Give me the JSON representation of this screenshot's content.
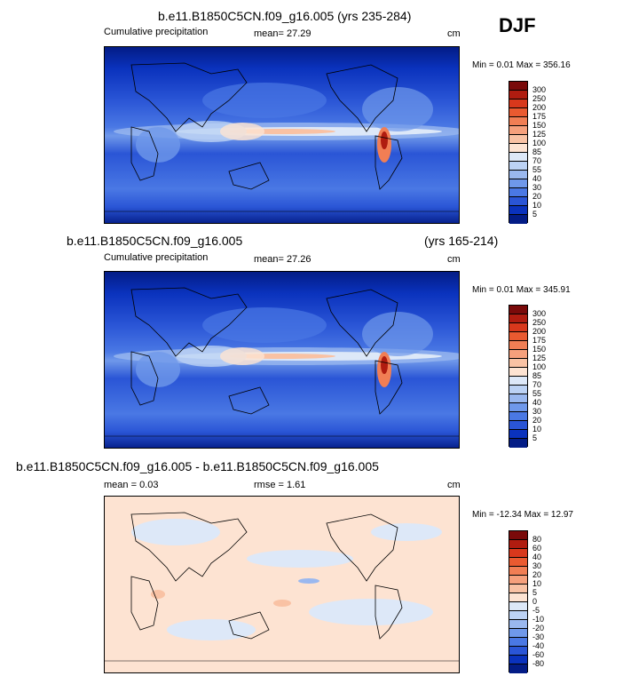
{
  "season": "DJF",
  "panels": [
    {
      "title": "b.e11.B1850C5CN.f09_g16.005 (yrs 235-284)",
      "title_right": "",
      "left_label": "Cumulative precipitation",
      "mean_label": "mean=",
      "mean_value": "27.29",
      "extra_label": "",
      "extra_value": "",
      "units": "cm",
      "min_max": "Min =  0.01 Max = 356.16",
      "colorbar": {
        "labels": [
          "300",
          "250",
          "200",
          "175",
          "150",
          "125",
          "100",
          "85",
          "70",
          "55",
          "40",
          "30",
          "20",
          "10",
          "5"
        ],
        "colors": [
          "#7a0a0a",
          "#b01c10",
          "#d8381c",
          "#ea5a30",
          "#f17e54",
          "#f6a07c",
          "#f9c2a4",
          "#fde3d2",
          "#dde8f8",
          "#bcd2f4",
          "#9ab8ef",
          "#6f98ea",
          "#4a78e4",
          "#2a55d6",
          "#0a32bd",
          "#031c86"
        ]
      }
    },
    {
      "title": "b.e11.B1850C5CN.f09_g16.005",
      "title_right": "(yrs 165-214)",
      "left_label": "Cumulative precipitation",
      "mean_label": "mean=",
      "mean_value": "27.26",
      "extra_label": "",
      "extra_value": "",
      "units": "cm",
      "min_max": "Min =  0.01 Max = 345.91",
      "colorbar": {
        "labels": [
          "300",
          "250",
          "200",
          "175",
          "150",
          "125",
          "100",
          "85",
          "70",
          "55",
          "40",
          "30",
          "20",
          "10",
          "5"
        ],
        "colors": [
          "#7a0a0a",
          "#b01c10",
          "#d8381c",
          "#ea5a30",
          "#f17e54",
          "#f6a07c",
          "#f9c2a4",
          "#fde3d2",
          "#dde8f8",
          "#bcd2f4",
          "#9ab8ef",
          "#6f98ea",
          "#4a78e4",
          "#2a55d6",
          "#0a32bd",
          "#031c86"
        ]
      }
    },
    {
      "title": "b.e11.B1850C5CN.f09_g16.005 - b.e11.B1850C5CN.f09_g16.005",
      "title_right": "",
      "left_label": "",
      "mean_label": "mean =",
      "mean_value": "0.03",
      "extra_label": "rmse =",
      "extra_value": "1.61",
      "units": "cm",
      "min_max": "Min = -12.34 Max =  12.97",
      "colorbar": {
        "labels": [
          "80",
          "60",
          "40",
          "30",
          "20",
          "10",
          "5",
          "0",
          "-5",
          "-10",
          "-20",
          "-30",
          "-40",
          "-60",
          "-80"
        ],
        "colors": [
          "#7a0a0a",
          "#b01c10",
          "#d8381c",
          "#ea5a30",
          "#f17e54",
          "#f6a07c",
          "#f9c2a4",
          "#fde3d2",
          "#dde8f8",
          "#bcd2f4",
          "#9ab8ef",
          "#6f98ea",
          "#4a78e4",
          "#2a55d6",
          "#0a32bd",
          "#031c86"
        ]
      }
    }
  ]
}
